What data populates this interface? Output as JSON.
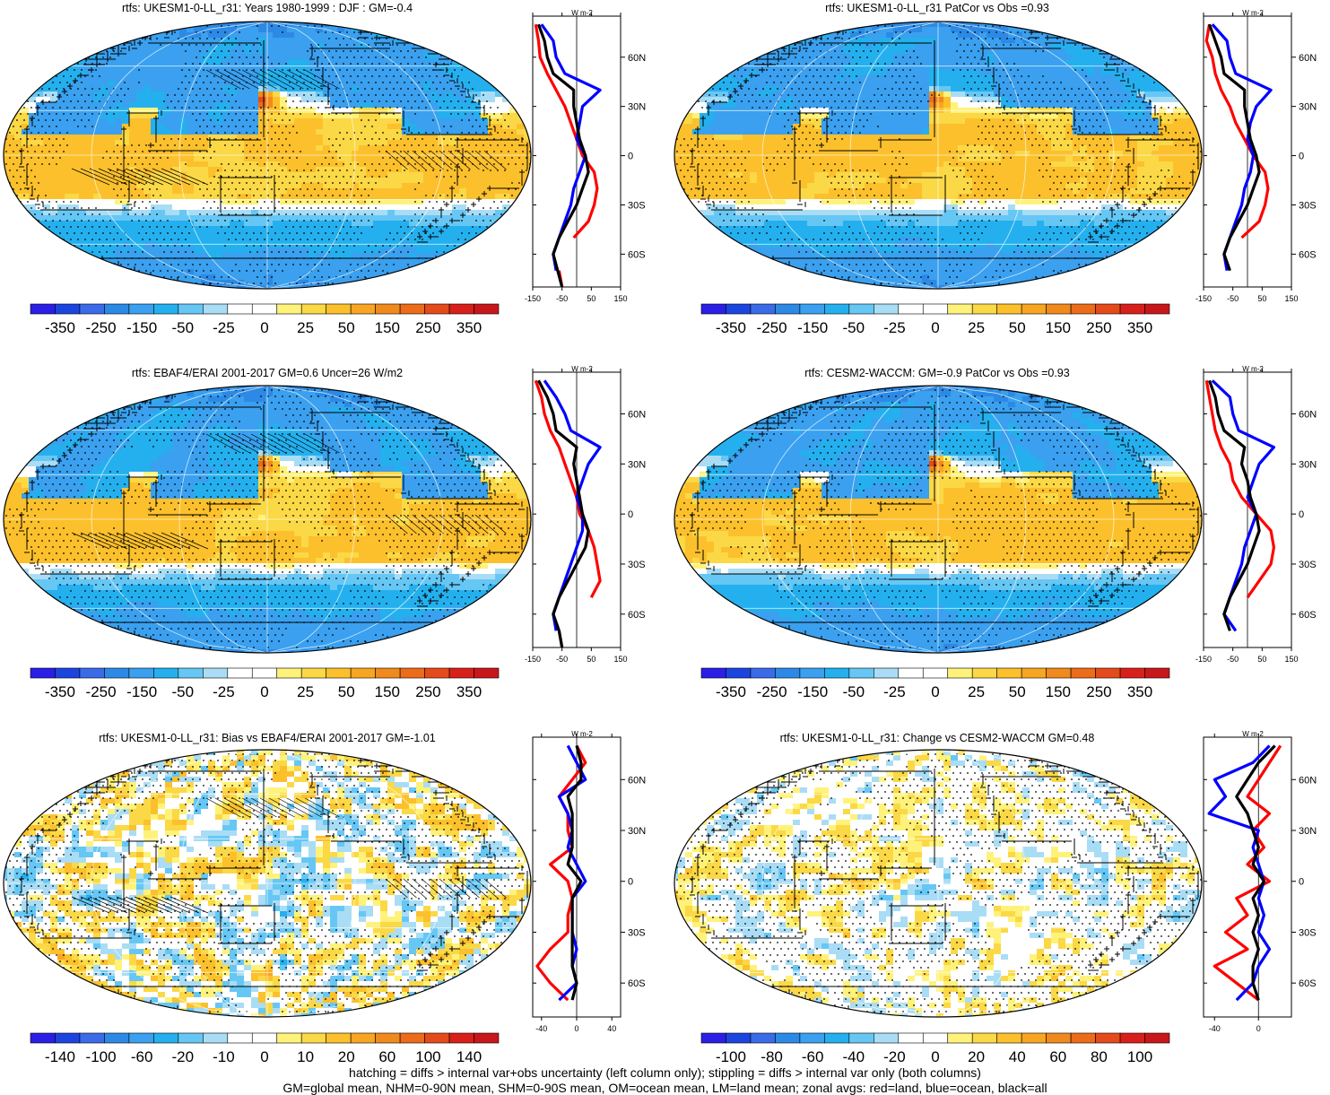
{
  "colors": {
    "palette": [
      "#2b1ee6",
      "#1c45e0",
      "#3b6be8",
      "#2c8ae6",
      "#3aa0ef",
      "#24b0ee",
      "#66c7f5",
      "#a9ddf5",
      "#ffffff",
      "#ffffff",
      "#fff27a",
      "#fbd846",
      "#fcc02c",
      "#f8a522",
      "#f08a1c",
      "#ec6c1a",
      "#e44a1a",
      "#d91f1a",
      "#c8171a"
    ],
    "land_line": "#000000",
    "zonal_land": "#ff0000",
    "zonal_ocean": "#0000ff",
    "zonal_all": "#000000"
  },
  "zonal_unit": "W m-2",
  "lat_labels": [
    "60N",
    "30N",
    "0",
    "30S",
    "60S"
  ],
  "lat_values": [
    60,
    30,
    0,
    -30,
    -60
  ],
  "panels": [
    {
      "id": "p1",
      "title": "rtfs: UKESM1-0-LL_r31: Years 1980-1999 : DJF : GM=-0.4",
      "colorbar": [
        "-350",
        "-250",
        "-150",
        "-50",
        "-25",
        "0",
        "25",
        "50",
        "150",
        "250",
        "350"
      ],
      "zonal_ticks": [
        "-150",
        "-50",
        "50",
        "150"
      ],
      "zonal_tick_values": [
        -150,
        -50,
        50,
        150
      ],
      "zonal_range": [
        -150,
        150
      ],
      "kind": "mean",
      "seed": 1,
      "hatch": true
    },
    {
      "id": "p2",
      "title": "rtfs: UKESM1-0-LL_r31 PatCor vs Obs =0.93",
      "colorbar": [
        "-350",
        "-250",
        "-150",
        "-50",
        "-25",
        "0",
        "25",
        "50",
        "150",
        "250",
        "350"
      ],
      "zonal_ticks": [
        "-150",
        "-50",
        "50",
        "150"
      ],
      "zonal_tick_values": [
        -150,
        -50,
        50,
        150
      ],
      "zonal_range": [
        -150,
        150
      ],
      "kind": "mean",
      "seed": 2,
      "hatch": false
    },
    {
      "id": "p3",
      "title": "rtfs: EBAF4/ERAI 2001-2017 GM=0.6 Uncer=26 W/m2",
      "colorbar": [
        "-350",
        "-250",
        "-150",
        "-50",
        "-25",
        "0",
        "25",
        "50",
        "150",
        "250",
        "350"
      ],
      "zonal_ticks": [
        "-150",
        "-50",
        "50",
        "150"
      ],
      "zonal_tick_values": [
        -150,
        -50,
        50,
        150
      ],
      "zonal_range": [
        -150,
        150
      ],
      "kind": "mean",
      "seed": 3,
      "hatch": true
    },
    {
      "id": "p4",
      "title": "rtfs: CESM2-WACCM: GM=-0.9 PatCor vs Obs =0.93",
      "colorbar": [
        "-350",
        "-250",
        "-150",
        "-50",
        "-25",
        "0",
        "25",
        "50",
        "150",
        "250",
        "350"
      ],
      "zonal_ticks": [
        "-150",
        "-50",
        "50",
        "150"
      ],
      "zonal_tick_values": [
        -150,
        -50,
        50,
        150
      ],
      "zonal_range": [
        -150,
        150
      ],
      "kind": "mean",
      "seed": 4,
      "hatch": false
    },
    {
      "id": "p5",
      "title": "rtfs: UKESM1-0-LL_r31: Bias vs EBAF4/ERAI 2001-2017 GM=-1.01",
      "colorbar": [
        "-140",
        "-100",
        "-60",
        "-20",
        "-10",
        "0",
        "10",
        "20",
        "60",
        "100",
        "140"
      ],
      "zonal_ticks": [
        "-40",
        "0",
        "40"
      ],
      "zonal_tick_values": [
        -40,
        0,
        40
      ],
      "zonal_range": [
        -50,
        50
      ],
      "kind": "diff",
      "seed": 5,
      "hatch": true
    },
    {
      "id": "p6",
      "title": "rtfs: UKESM1-0-LL_r31: Change vs CESM2-WACCM GM=0.48",
      "colorbar": [
        "-100",
        "-80",
        "-60",
        "-40",
        "-20",
        "0",
        "20",
        "40",
        "60",
        "80",
        "100"
      ],
      "zonal_ticks": [
        "-40",
        "0"
      ],
      "zonal_tick_values": [
        -40,
        0
      ],
      "zonal_range": [
        -50,
        30
      ],
      "kind": "change",
      "seed": 6,
      "hatch": false
    }
  ],
  "chart_data": [
    {
      "type": "heatmap",
      "title": "rtfs: UKESM1-0-LL_r31: Years 1980-1999 : DJF : GM=-0.4",
      "colorbar_levels": [
        -350,
        -250,
        -150,
        -50,
        -25,
        0,
        25,
        50,
        150,
        250,
        350
      ],
      "zonal_mean": {
        "lat": [
          80,
          70,
          60,
          50,
          40,
          30,
          20,
          10,
          0,
          -10,
          -20,
          -30,
          -40,
          -50,
          -60,
          -70,
          -80
        ],
        "land": [
          -140,
          -130,
          -125,
          -100,
          -70,
          -40,
          -20,
          0,
          20,
          60,
          70,
          60,
          40,
          -10,
          null,
          -60,
          -50
        ],
        "ocean": [
          -120,
          -80,
          -70,
          -40,
          80,
          20,
          10,
          0,
          30,
          10,
          -10,
          -20,
          -40,
          -60,
          -80,
          -70,
          null
        ],
        "all": [
          -130,
          -110,
          -100,
          -80,
          -10,
          -10,
          0,
          10,
          30,
          40,
          20,
          0,
          -30,
          -60,
          -80,
          -65,
          -50
        ]
      }
    },
    {
      "type": "heatmap",
      "title": "rtfs: UKESM1-0-LL_r31 PatCor vs Obs =0.93",
      "colorbar_levels": [
        -350,
        -250,
        -150,
        -50,
        -25,
        0,
        25,
        50,
        150,
        250,
        350
      ],
      "zonal_mean": {
        "lat": [
          80,
          70,
          60,
          50,
          40,
          30,
          20,
          10,
          0,
          -10,
          -20,
          -30,
          -40,
          -50,
          -60,
          -70
        ],
        "land": [
          -130,
          -140,
          -120,
          -110,
          -90,
          -60,
          -40,
          -10,
          20,
          60,
          70,
          60,
          40,
          -20,
          null,
          -60
        ],
        "ocean": [
          -120,
          -70,
          -60,
          -40,
          80,
          30,
          10,
          0,
          20,
          10,
          -10,
          -20,
          -40,
          -60,
          -80,
          -70
        ],
        "all": [
          -130,
          -110,
          -90,
          -80,
          -10,
          -10,
          0,
          10,
          30,
          40,
          20,
          0,
          -30,
          -60,
          -80,
          -60
        ]
      }
    },
    {
      "type": "heatmap",
      "title": "rtfs: EBAF4/ERAI 2001-2017 GM=0.6 Uncer=26 W/m2",
      "colorbar_levels": [
        -350,
        -250,
        -150,
        -50,
        -25,
        0,
        25,
        50,
        150,
        250,
        350
      ],
      "zonal_mean": {
        "lat": [
          80,
          70,
          60,
          50,
          40,
          30,
          20,
          10,
          0,
          -10,
          -20,
          -30,
          -40,
          -50,
          -60,
          -70,
          -80
        ],
        "land": [
          -140,
          -120,
          -110,
          -90,
          -60,
          -40,
          -20,
          0,
          10,
          40,
          60,
          70,
          80,
          50,
          null,
          -60,
          -50
        ],
        "ocean": [
          -110,
          -70,
          -40,
          -20,
          80,
          40,
          20,
          0,
          20,
          20,
          0,
          -20,
          -40,
          -60,
          -80,
          -70,
          null
        ],
        "all": [
          -130,
          -100,
          -80,
          -70,
          0,
          -10,
          0,
          10,
          20,
          40,
          30,
          0,
          -30,
          -60,
          -80,
          -60,
          -50
        ]
      }
    },
    {
      "type": "heatmap",
      "title": "rtfs: CESM2-WACCM: GM=-0.9 PatCor vs Obs =0.93",
      "colorbar_levels": [
        -350,
        -250,
        -150,
        -50,
        -25,
        0,
        25,
        50,
        150,
        250,
        350
      ],
      "zonal_mean": {
        "lat": [
          80,
          70,
          60,
          50,
          40,
          30,
          20,
          10,
          0,
          -10,
          -20,
          -30,
          -40,
          -50,
          -60,
          -70
        ],
        "land": [
          -140,
          -130,
          -120,
          -110,
          -90,
          -60,
          -50,
          -20,
          30,
          80,
          90,
          80,
          40,
          0,
          null,
          -60
        ],
        "ocean": [
          -120,
          -60,
          -50,
          -30,
          90,
          40,
          20,
          0,
          30,
          10,
          -10,
          -20,
          -40,
          -60,
          -80,
          -40
        ],
        "all": [
          -130,
          -110,
          -100,
          -80,
          -10,
          -20,
          0,
          10,
          30,
          40,
          20,
          0,
          -30,
          -60,
          -80,
          -60
        ]
      }
    },
    {
      "type": "heatmap",
      "title": "rtfs: UKESM1-0-LL_r31: Bias vs EBAF4/ERAI 2001-2017 GM=-1.01",
      "colorbar_levels": [
        -140,
        -100,
        -60,
        -20,
        -10,
        0,
        10,
        20,
        60,
        100,
        140
      ],
      "zonal_mean": {
        "lat": [
          80,
          70,
          60,
          50,
          40,
          30,
          20,
          10,
          0,
          -10,
          -20,
          -30,
          -40,
          -50,
          -60,
          -70
        ],
        "land": [
          0,
          10,
          -5,
          -20,
          -10,
          -10,
          -5,
          -30,
          -10,
          -5,
          -10,
          -10,
          -30,
          -45,
          -30,
          -10
        ],
        "ocean": [
          -10,
          0,
          10,
          -20,
          -10,
          -5,
          -10,
          0,
          10,
          -5,
          -5,
          -5,
          0,
          -5,
          0,
          -20
        ],
        "all": [
          0,
          5,
          5,
          -10,
          -5,
          -5,
          -5,
          -10,
          5,
          -5,
          -5,
          -5,
          -5,
          -5,
          0,
          -5
        ]
      }
    },
    {
      "type": "heatmap",
      "title": "rtfs: UKESM1-0-LL_r31: Change vs CESM2-WACCM GM=0.48",
      "colorbar_levels": [
        -100,
        -80,
        -60,
        -40,
        -20,
        0,
        20,
        40,
        60,
        80,
        100
      ],
      "zonal_mean": {
        "lat": [
          80,
          70,
          60,
          50,
          40,
          30,
          20,
          10,
          0,
          -10,
          -20,
          -30,
          -40,
          -50,
          -60,
          -70
        ],
        "land": [
          20,
          10,
          0,
          -10,
          10,
          -5,
          5,
          -10,
          10,
          -20,
          -10,
          -30,
          -10,
          -40,
          -20,
          0
        ],
        "ocean": [
          10,
          -5,
          -40,
          -30,
          -45,
          0,
          -5,
          0,
          5,
          0,
          5,
          0,
          10,
          0,
          -5,
          -20
        ],
        "all": [
          15,
          0,
          -10,
          -20,
          -10,
          -5,
          0,
          -5,
          5,
          -5,
          0,
          -5,
          0,
          -5,
          -5,
          0
        ]
      }
    }
  ],
  "footer": {
    "line1": "hatching = diffs > internal var+obs uncertainty (left column only); stippling = diffs > internal var only (both columns)",
    "line2": "GM=global mean, NHM=0-90N mean, SHM=0-90S mean, OM=ocean mean, LM=land mean; zonal avgs: red=land, blue=ocean, black=all"
  }
}
